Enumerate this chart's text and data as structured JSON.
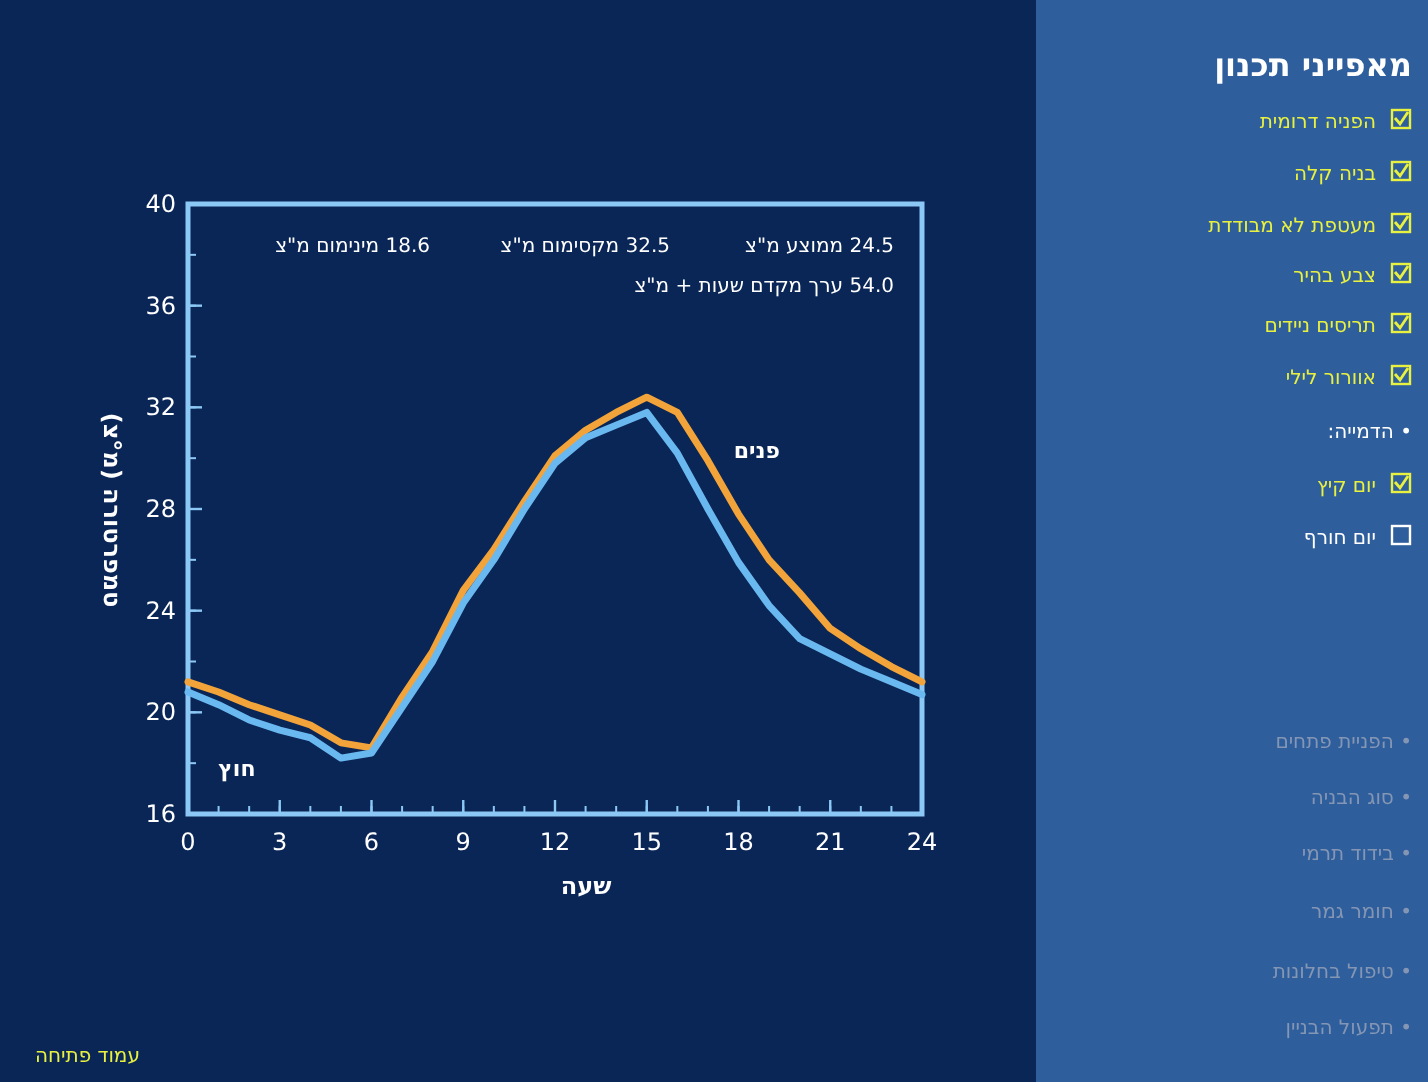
{
  "chart_data": {
    "type": "line",
    "xlabel": "שעה",
    "ylabel": "טמפרטורה (מ°צ)",
    "xlim": [
      0,
      24
    ],
    "xticks": [
      0,
      3,
      6,
      9,
      12,
      15,
      18,
      21,
      24
    ],
    "ylim": [
      16,
      40
    ],
    "yticks": [
      16,
      20,
      24,
      28,
      32,
      36,
      40
    ],
    "x": [
      0,
      1,
      2,
      3,
      4,
      5,
      6,
      7,
      8,
      9,
      10,
      11,
      12,
      13,
      14,
      15,
      16,
      17,
      18,
      19,
      20,
      21,
      22,
      23,
      24
    ],
    "series": [
      {
        "name": "פנים",
        "color": "#f2a33a",
        "values": [
          21.2,
          20.8,
          20.3,
          19.9,
          19.5,
          18.8,
          18.6,
          20.6,
          22.4,
          24.8,
          26.4,
          28.3,
          30.1,
          31.1,
          31.8,
          32.4,
          31.8,
          29.9,
          27.8,
          26.0,
          24.7,
          23.3,
          22.5,
          21.8,
          21.2
        ]
      },
      {
        "name": "חוץ",
        "color": "#6ab8f0",
        "values": [
          20.8,
          20.3,
          19.7,
          19.3,
          19.0,
          18.2,
          18.4,
          20.2,
          22.0,
          24.3,
          26.0,
          28.0,
          29.8,
          30.8,
          31.3,
          31.8,
          30.2,
          28.0,
          25.9,
          24.2,
          22.9,
          22.3,
          21.7,
          21.2,
          20.7
        ]
      }
    ],
    "line_style": "solid",
    "marker": "none",
    "grid": false,
    "annotations": [
      "24.5 ממוצע מ\"צ",
      "32.5 מקסימום מ\"צ",
      "18.6 מינימום מ\"צ",
      "54.0 ערך מקדם שעות + מ\"צ",
      "מאפייני תכנון",
      "הפניה דרומית",
      "בניה קלה",
      "מעטפת לא מבודדת",
      "צבע בהיר",
      "תריסים ניידים",
      "אוורור לילי",
      "• הדמייה:",
      "יום קיץ",
      "יום חורף",
      "• הפניית פתחים",
      "• סוג הבניה",
      "• בידוד תרמי",
      "• חומר גמר",
      "• טיפול בחלונות",
      "• תפעול הבניין",
      "עמוד פתיחה"
    ]
  }
}
